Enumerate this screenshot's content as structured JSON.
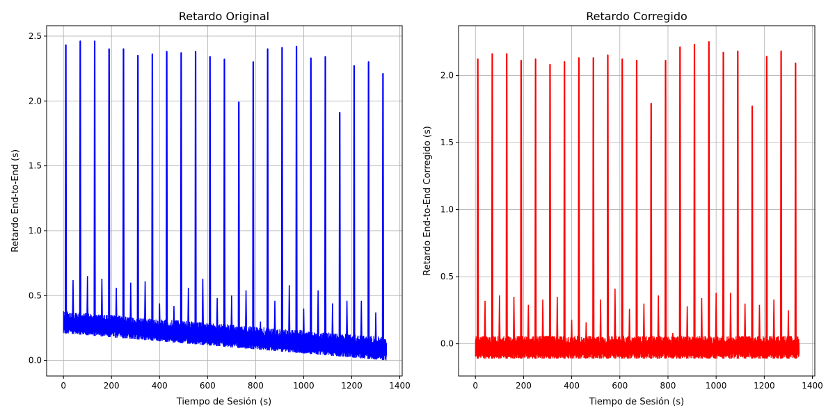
{
  "chart_data": [
    {
      "type": "line",
      "title": "Retardo Original",
      "xlabel": "Tiempo de Sesión (s)",
      "ylabel": "Retardo End-to-End (s)",
      "xlim": [
        -70,
        1410
      ],
      "ylim": [
        -0.12,
        2.58
      ],
      "xticks": [
        0,
        200,
        400,
        600,
        800,
        1000,
        1200,
        1400
      ],
      "yticks": [
        0.0,
        0.5,
        1.0,
        1.5,
        2.0,
        2.5
      ],
      "xtick_labels": [
        "0",
        "200",
        "400",
        "600",
        "800",
        "1000",
        "1200",
        "1400"
      ],
      "ytick_labels": [
        "0.0",
        "0.5",
        "1.0",
        "1.5",
        "2.0",
        "2.5"
      ],
      "grid": true,
      "color": "#0000ff",
      "x_range": [
        0,
        1345
      ],
      "baseline_band": {
        "start": [
          0.21,
          0.38
        ],
        "end": [
          0.0,
          0.18
        ]
      },
      "spikes": [
        {
          "x": 10,
          "y": 2.43
        },
        {
          "x": 70,
          "y": 2.46
        },
        {
          "x": 130,
          "y": 2.46
        },
        {
          "x": 190,
          "y": 2.4
        },
        {
          "x": 250,
          "y": 2.4
        },
        {
          "x": 310,
          "y": 2.35
        },
        {
          "x": 370,
          "y": 2.36
        },
        {
          "x": 430,
          "y": 2.38
        },
        {
          "x": 490,
          "y": 2.37
        },
        {
          "x": 550,
          "y": 2.38
        },
        {
          "x": 610,
          "y": 2.34
        },
        {
          "x": 670,
          "y": 2.32
        },
        {
          "x": 730,
          "y": 1.99
        },
        {
          "x": 790,
          "y": 2.3
        },
        {
          "x": 850,
          "y": 2.4
        },
        {
          "x": 910,
          "y": 2.41
        },
        {
          "x": 970,
          "y": 2.42
        },
        {
          "x": 1030,
          "y": 2.33
        },
        {
          "x": 1090,
          "y": 2.34
        },
        {
          "x": 1150,
          "y": 1.91
        },
        {
          "x": 1210,
          "y": 2.27
        },
        {
          "x": 1270,
          "y": 2.3
        },
        {
          "x": 1330,
          "y": 2.21
        }
      ],
      "minor_spikes": [
        {
          "x": 40,
          "y": 0.62
        },
        {
          "x": 100,
          "y": 0.65
        },
        {
          "x": 160,
          "y": 0.63
        },
        {
          "x": 220,
          "y": 0.56
        },
        {
          "x": 280,
          "y": 0.6
        },
        {
          "x": 340,
          "y": 0.61
        },
        {
          "x": 400,
          "y": 0.44
        },
        {
          "x": 460,
          "y": 0.42
        },
        {
          "x": 520,
          "y": 0.56
        },
        {
          "x": 580,
          "y": 0.63
        },
        {
          "x": 640,
          "y": 0.48
        },
        {
          "x": 700,
          "y": 0.5
        },
        {
          "x": 760,
          "y": 0.54
        },
        {
          "x": 820,
          "y": 0.3
        },
        {
          "x": 880,
          "y": 0.46
        },
        {
          "x": 940,
          "y": 0.58
        },
        {
          "x": 1000,
          "y": 0.4
        },
        {
          "x": 1060,
          "y": 0.54
        },
        {
          "x": 1120,
          "y": 0.44
        },
        {
          "x": 1180,
          "y": 0.46
        },
        {
          "x": 1240,
          "y": 0.46
        },
        {
          "x": 1300,
          "y": 0.37
        }
      ]
    },
    {
      "type": "line",
      "title": "Retardo Corregido",
      "xlabel": "Tiempo de Sesión (s)",
      "ylabel": "Retardo End-to-End Corregido (s)",
      "xlim": [
        -70,
        1410
      ],
      "ylim": [
        -0.24,
        2.37
      ],
      "xticks": [
        0,
        200,
        400,
        600,
        800,
        1000,
        1200,
        1400
      ],
      "yticks": [
        0.0,
        0.5,
        1.0,
        1.5,
        2.0
      ],
      "xtick_labels": [
        "0",
        "200",
        "400",
        "600",
        "800",
        "1000",
        "1200",
        "1400"
      ],
      "ytick_labels": [
        "0.0",
        "0.5",
        "1.0",
        "1.5",
        "2.0"
      ],
      "grid": true,
      "color": "#ff0000",
      "x_range": [
        0,
        1345
      ],
      "baseline_band": {
        "start": [
          -0.11,
          0.06
        ],
        "end": [
          -0.11,
          0.06
        ]
      },
      "spikes": [
        {
          "x": 10,
          "y": 2.12
        },
        {
          "x": 70,
          "y": 2.16
        },
        {
          "x": 130,
          "y": 2.16
        },
        {
          "x": 190,
          "y": 2.11
        },
        {
          "x": 250,
          "y": 2.12
        },
        {
          "x": 310,
          "y": 2.08
        },
        {
          "x": 370,
          "y": 2.1
        },
        {
          "x": 430,
          "y": 2.13
        },
        {
          "x": 490,
          "y": 2.13
        },
        {
          "x": 550,
          "y": 2.15
        },
        {
          "x": 610,
          "y": 2.12
        },
        {
          "x": 670,
          "y": 2.11
        },
        {
          "x": 730,
          "y": 1.79
        },
        {
          "x": 790,
          "y": 2.11
        },
        {
          "x": 850,
          "y": 2.21
        },
        {
          "x": 910,
          "y": 2.23
        },
        {
          "x": 970,
          "y": 2.25
        },
        {
          "x": 1030,
          "y": 2.17
        },
        {
          "x": 1090,
          "y": 2.18
        },
        {
          "x": 1150,
          "y": 1.77
        },
        {
          "x": 1210,
          "y": 2.14
        },
        {
          "x": 1270,
          "y": 2.18
        },
        {
          "x": 1330,
          "y": 2.09
        }
      ],
      "minor_spikes": [
        {
          "x": 40,
          "y": 0.32
        },
        {
          "x": 100,
          "y": 0.36
        },
        {
          "x": 160,
          "y": 0.35
        },
        {
          "x": 220,
          "y": 0.29
        },
        {
          "x": 280,
          "y": 0.33
        },
        {
          "x": 340,
          "y": 0.35
        },
        {
          "x": 400,
          "y": 0.18
        },
        {
          "x": 460,
          "y": 0.16
        },
        {
          "x": 520,
          "y": 0.33
        },
        {
          "x": 580,
          "y": 0.41
        },
        {
          "x": 640,
          "y": 0.26
        },
        {
          "x": 700,
          "y": 0.3
        },
        {
          "x": 760,
          "y": 0.36
        },
        {
          "x": 820,
          "y": 0.08
        },
        {
          "x": 880,
          "y": 0.28
        },
        {
          "x": 940,
          "y": 0.34
        },
        {
          "x": 1000,
          "y": 0.38
        },
        {
          "x": 1060,
          "y": 0.38
        },
        {
          "x": 1120,
          "y": 0.3
        },
        {
          "x": 1180,
          "y": 0.29
        },
        {
          "x": 1240,
          "y": 0.33
        },
        {
          "x": 1300,
          "y": 0.25
        }
      ]
    }
  ]
}
